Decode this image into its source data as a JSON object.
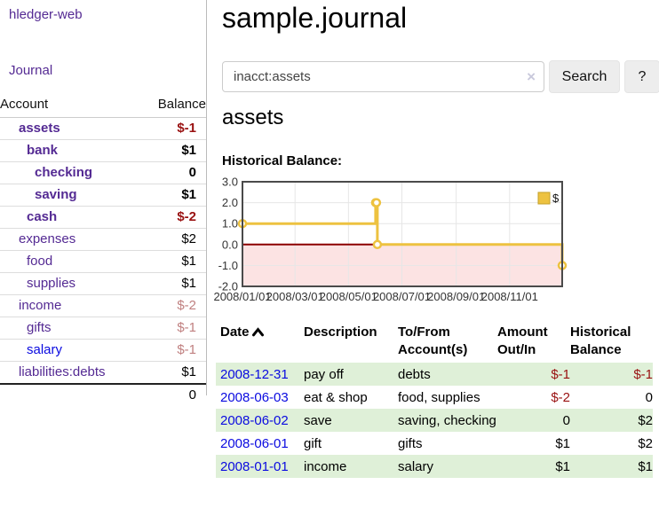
{
  "app": {
    "title": "hledger-web"
  },
  "sidebar": {
    "journal_link": "Journal",
    "accounts": {
      "col_account": "Account",
      "col_balance": "Balance",
      "rows": [
        {
          "name": "assets",
          "level": 0,
          "bold": true,
          "balance": "$-1"
        },
        {
          "name": "bank",
          "level": 1,
          "bold": true,
          "balance": "$1"
        },
        {
          "name": "checking",
          "level": 2,
          "bold": true,
          "balance": "0"
        },
        {
          "name": "saving",
          "level": 2,
          "bold": true,
          "balance": "$1"
        },
        {
          "name": "cash",
          "level": 1,
          "bold": true,
          "balance": "$-2"
        },
        {
          "name": "expenses",
          "level": 0,
          "bold": false,
          "balance": "$2"
        },
        {
          "name": "food",
          "level": 1,
          "bold": false,
          "balance": "$1"
        },
        {
          "name": "supplies",
          "level": 1,
          "bold": false,
          "balance": "$1"
        },
        {
          "name": "income",
          "level": 0,
          "bold": false,
          "balance": "$-2"
        },
        {
          "name": "gifts",
          "level": 1,
          "bold": false,
          "balance": "$-1"
        },
        {
          "name": "salary",
          "level": 1,
          "bold": false,
          "balance": "$-1",
          "unvisited": true
        },
        {
          "name": "liabilities:debts",
          "level": 0,
          "bold": false,
          "balance": "$1"
        }
      ],
      "total": "0"
    }
  },
  "main": {
    "title": "sample.journal",
    "search": {
      "value": "inacct:assets",
      "clear_icon": "×",
      "search_button": "Search",
      "help_button": "?"
    },
    "account_heading": "assets",
    "section_heading": "Historical Balance:"
  },
  "chart_data": {
    "type": "line",
    "step": true,
    "title": "Historical Balance:",
    "series": [
      {
        "name": "$",
        "color": "#edc240",
        "points": [
          [
            "2008-01-01",
            1
          ],
          [
            "2008-06-01",
            2
          ],
          [
            "2008-06-02",
            2
          ],
          [
            "2008-06-03",
            0
          ],
          [
            "2008-12-31",
            -1
          ]
        ]
      }
    ],
    "x_ticks": [
      "2008/01/01",
      "2008/03/01",
      "2008/05/01",
      "2008/07/01",
      "2008/09/01",
      "2008/11/01"
    ],
    "y_ticks": [
      "3.0",
      "2.0",
      "1.0",
      "0.0",
      "-1.0",
      "-2.0"
    ],
    "ylim": [
      -2,
      3
    ],
    "xlim": [
      "2008-01-01",
      "2008-12-31"
    ],
    "legend": {
      "label": "$",
      "position": "top-right"
    },
    "grid": true
  },
  "register": {
    "headers": {
      "date": "Date",
      "description": "Description",
      "accounts": "To/From Account(s)",
      "amount": "Amount Out/In",
      "balance": "Historical Balance"
    },
    "sort_icon": "chevron-up",
    "rows": [
      {
        "date": "2008-12-31",
        "description": "pay off",
        "accounts": "debts",
        "amount": "$-1",
        "balance": "$-1"
      },
      {
        "date": "2008-06-03",
        "description": "eat & shop",
        "accounts": "food, supplies",
        "amount": "$-2",
        "balance": "0"
      },
      {
        "date": "2008-06-02",
        "description": "save",
        "accounts": "saving, checking",
        "amount": "0",
        "balance": "$2"
      },
      {
        "date": "2008-06-01",
        "description": "gift",
        "accounts": "gifts",
        "amount": "$1",
        "balance": "$2"
      },
      {
        "date": "2008-01-01",
        "description": "income",
        "accounts": "salary",
        "amount": "$1",
        "balance": "$1"
      }
    ]
  },
  "colors": {
    "link_visited_purple": "#542a93",
    "link_blue": "#0a0ae0",
    "negative_strong": "#991111",
    "negative_faded": "#c08080",
    "row_highlight_green": "#dff0d8",
    "chart_line_gold": "#edc240",
    "chart_marker_fill": "#ffffff",
    "chart_negative_region": "#fce3e3",
    "chart_zero_line": "#8b0000",
    "chart_grid": "#e6e6e6",
    "chart_border": "#4a4a4a",
    "divider_gray": "#bbbbbb"
  }
}
